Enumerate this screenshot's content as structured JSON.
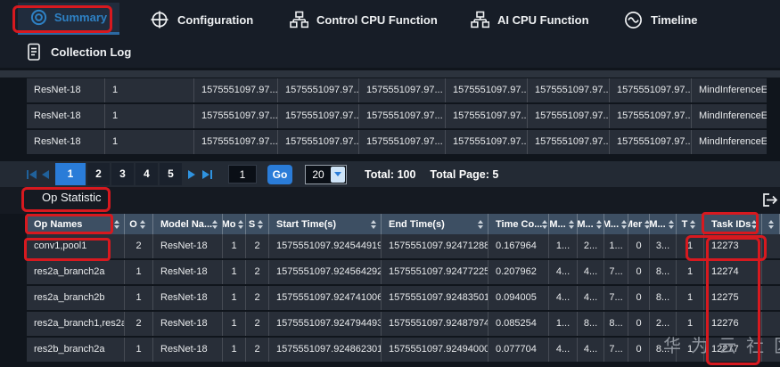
{
  "nav": {
    "tabs": [
      {
        "label": "Summary",
        "icon": "summary-icon",
        "active": true
      },
      {
        "label": "Configuration",
        "icon": "configuration-icon",
        "active": false
      },
      {
        "label": "Control CPU Function",
        "icon": "control-cpu-icon",
        "active": false
      },
      {
        "label": "AI CPU Function",
        "icon": "ai-cpu-icon",
        "active": false
      },
      {
        "label": "Timeline",
        "icon": "timeline-icon",
        "active": false
      }
    ],
    "second_row": [
      {
        "label": "Collection Log",
        "icon": "collection-log-icon"
      }
    ]
  },
  "top_table": {
    "rows": [
      [
        "ResNet-18",
        "1",
        "1575551097.97...",
        "1575551097.97...",
        "1575551097.97...",
        "1575551097.97...",
        "1575551097.97...",
        "1575551097.97...",
        "MindInferenceE..."
      ],
      [
        "ResNet-18",
        "1",
        "1575551097.97...",
        "1575551097.97...",
        "1575551097.97...",
        "1575551097.97...",
        "1575551097.97...",
        "1575551097.97...",
        "MindInferenceE..."
      ],
      [
        "ResNet-18",
        "1",
        "1575551097.97...",
        "1575551097.97...",
        "1575551097.97...",
        "1575551097.97...",
        "1575551097.97...",
        "1575551097.97...",
        "MindInferenceE..."
      ]
    ]
  },
  "pagination": {
    "pages": [
      "1",
      "2",
      "3",
      "4",
      "5"
    ],
    "active_page": "1",
    "goto_value": "1",
    "go_label": "Go",
    "page_size": "20",
    "total_label": "Total: 100",
    "total_page_label": "Total Page: 5"
  },
  "op_section": {
    "tab_label": "Op Statistic",
    "export_icon": "export-icon"
  },
  "op_table": {
    "headers": [
      "Op Names",
      "O",
      "Model Na...",
      "Mo",
      "S",
      "Start Time(s)",
      "End Time(s)",
      "Time Co...",
      "M...",
      "M...",
      "M...",
      "Mer",
      "M...",
      "T",
      "Task IDs",
      ""
    ],
    "rows": [
      [
        "conv1,pool1",
        "2",
        "ResNet-18",
        "1",
        "2",
        "1575551097.924544919",
        "1575551097.924712883",
        "0.167964",
        "1...",
        "2...",
        "1...",
        "0",
        "3...",
        "1",
        "12273",
        ""
      ],
      [
        "res2a_branch2a",
        "1",
        "ResNet-18",
        "1",
        "2",
        "1575551097.924564292",
        "1575551097.924772254",
        "0.207962",
        "4...",
        "4...",
        "7...",
        "0",
        "8...",
        "1",
        "12274",
        ""
      ],
      [
        "res2a_branch2b",
        "1",
        "ResNet-18",
        "1",
        "2",
        "1575551097.924741006",
        "1575551097.924835011",
        "0.094005",
        "4...",
        "4...",
        "7...",
        "0",
        "8...",
        "1",
        "12275",
        ""
      ],
      [
        "res2a_branch1,res2a",
        "2",
        "ResNet-18",
        "1",
        "2",
        "1575551097.924794493",
        "1575551097.924879747",
        "0.085254",
        "1...",
        "8...",
        "8...",
        "0",
        "2...",
        "1",
        "12276",
        ""
      ],
      [
        "res2b_branch2a",
        "1",
        "ResNet-18",
        "1",
        "2",
        "1575551097.924862301",
        "1575551097.924940005",
        "0.077704",
        "4...",
        "4...",
        "7...",
        "0",
        "8...",
        "1",
        "12277",
        ""
      ]
    ]
  },
  "watermark": "华为云社区",
  "annotations": {
    "color": "#d7191f",
    "targets": [
      "summary-tab",
      "op-statistic-tab",
      "op-names-header",
      "conv1-pool1-cell",
      "task-ids-header",
      "task-id-12273",
      "task-ids-column"
    ]
  },
  "colors": {
    "accent_blue": "#2a7cd8",
    "active_tab_blue": "#2e81c4",
    "header_bg": "#3d4f63",
    "annotation_red": "#d7191f"
  }
}
